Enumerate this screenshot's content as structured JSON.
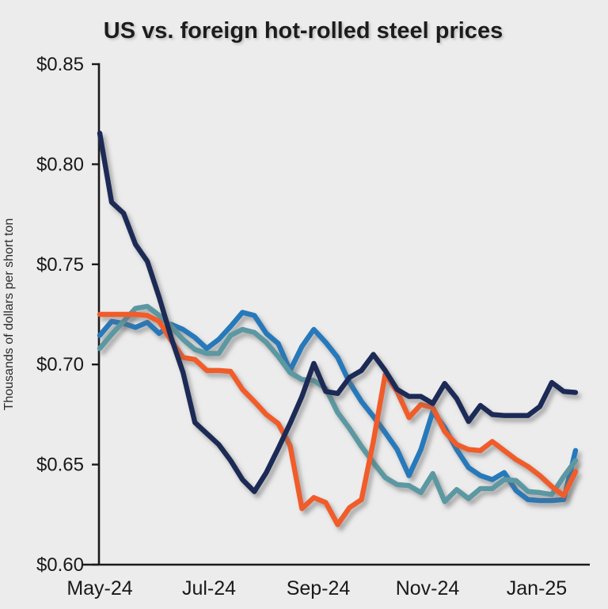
{
  "page": {
    "background_color": "#ececec",
    "text_color": "#1a1a1a"
  },
  "chart_data": {
    "type": "line",
    "title": "US vs. foreign hot-rolled steel prices",
    "ylabel": "Thousands of dollars per short ton",
    "xlabel": "",
    "ylim": [
      0.6,
      0.85
    ],
    "grid": false,
    "legend": "none",
    "y_ticks": [
      {
        "label": "$0.85",
        "value": 0.85
      },
      {
        "label": "$0.80",
        "value": 0.8
      },
      {
        "label": "$0.75",
        "value": 0.75
      },
      {
        "label": "$0.70",
        "value": 0.7
      },
      {
        "label": "$0.65",
        "value": 0.65
      },
      {
        "label": "$0.60",
        "value": 0.6
      }
    ],
    "x_ticks": [
      "May-24",
      "Jul-24",
      "Sep-24",
      "Nov-24",
      "Jan-25"
    ],
    "x_unit": "weekly observations, May 2024 through late Jan 2025",
    "series": [
      {
        "name": "blue-line",
        "color": "#2579ba",
        "values": [
          0.7145,
          0.7215,
          0.7205,
          0.7185,
          0.721,
          0.7155,
          0.72,
          0.7175,
          0.7135,
          0.708,
          0.7125,
          0.719,
          0.726,
          0.7245,
          0.7155,
          0.7105,
          0.697,
          0.709,
          0.7175,
          0.711,
          0.7035,
          0.691,
          0.6815,
          0.674,
          0.666,
          0.6575,
          0.6445,
          0.6575,
          0.6765,
          0.6685,
          0.6575,
          0.6485,
          0.6445,
          0.6425,
          0.646,
          0.637,
          0.6325,
          0.632,
          0.632,
          0.6325,
          0.657
        ]
      },
      {
        "name": "teal-line",
        "color": "#5b98a1",
        "values": [
          0.708,
          0.715,
          0.7215,
          0.728,
          0.729,
          0.7245,
          0.719,
          0.7125,
          0.7075,
          0.7055,
          0.7055,
          0.7145,
          0.7175,
          0.716,
          0.711,
          0.704,
          0.696,
          0.6925,
          0.692,
          0.688,
          0.676,
          0.668,
          0.659,
          0.651,
          0.6435,
          0.64,
          0.6395,
          0.636,
          0.6455,
          0.6315,
          0.6375,
          0.633,
          0.638,
          0.638,
          0.6425,
          0.642,
          0.6365,
          0.636,
          0.635,
          0.644,
          0.652
        ]
      },
      {
        "name": "orange-line",
        "color": "#f05b2b",
        "values": [
          0.725,
          0.725,
          0.725,
          0.725,
          0.7245,
          0.7215,
          0.712,
          0.7035,
          0.7025,
          0.697,
          0.697,
          0.6965,
          0.6875,
          0.6815,
          0.675,
          0.6705,
          0.6595,
          0.628,
          0.6335,
          0.631,
          0.62,
          0.6285,
          0.6325,
          0.6615,
          0.695,
          0.6865,
          0.6735,
          0.68,
          0.6785,
          0.6665,
          0.66,
          0.6575,
          0.657,
          0.6615,
          0.657,
          0.6525,
          0.649,
          0.6445,
          0.639,
          0.6345,
          0.6465
        ]
      },
      {
        "name": "navy-line",
        "color": "#1c2a56",
        "values": [
          0.8155,
          0.781,
          0.7755,
          0.76,
          0.7515,
          0.7335,
          0.7135,
          0.696,
          0.671,
          0.6655,
          0.66,
          0.652,
          0.6425,
          0.6365,
          0.646,
          0.658,
          0.6705,
          0.684,
          0.7005,
          0.6865,
          0.6855,
          0.6935,
          0.697,
          0.705,
          0.697,
          0.6875,
          0.684,
          0.684,
          0.6805,
          0.6905,
          0.683,
          0.6715,
          0.6795,
          0.675,
          0.6745,
          0.6745,
          0.6745,
          0.679,
          0.691,
          0.6865,
          0.686
        ]
      }
    ]
  }
}
